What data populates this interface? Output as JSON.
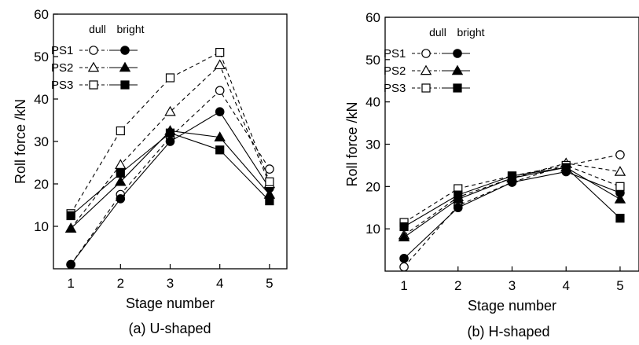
{
  "chart_data": [
    {
      "type": "line",
      "caption": "(a) U-shaped",
      "xlabel": "Stage number",
      "ylabel": "Roll force /kN",
      "xlim": [
        0.65,
        5.35
      ],
      "ylim": [
        0,
        60
      ],
      "x": [
        1,
        2,
        3,
        4,
        5
      ],
      "yticks": [
        10,
        20,
        30,
        40,
        50,
        60
      ],
      "grid": false,
      "legend_header": [
        "dull",
        "bright"
      ],
      "legend_placement": "top-left",
      "legend_rows": [
        {
          "label": "PS1",
          "marker": "circle"
        },
        {
          "label": "PS2",
          "marker": "triangle"
        },
        {
          "label": "PS3",
          "marker": "square"
        }
      ],
      "series": [
        {
          "group": "PS1",
          "finish": "dull",
          "marker": "circle",
          "filled": false,
          "dashed": true,
          "values": [
            1,
            17.5,
            31,
            42,
            23.5
          ]
        },
        {
          "group": "PS1",
          "finish": "bright",
          "marker": "circle",
          "filled": true,
          "dashed": false,
          "values": [
            1,
            16.5,
            30,
            37,
            19
          ]
        },
        {
          "group": "PS2",
          "finish": "dull",
          "marker": "triangle",
          "filled": false,
          "dashed": true,
          "values": [
            9.5,
            24.5,
            37,
            48,
            20
          ]
        },
        {
          "group": "PS2",
          "finish": "bright",
          "marker": "triangle",
          "filled": true,
          "dashed": false,
          "values": [
            9.5,
            20.5,
            32.5,
            31,
            17.5
          ]
        },
        {
          "group": "PS3",
          "finish": "dull",
          "marker": "square",
          "filled": false,
          "dashed": true,
          "values": [
            13,
            32.5,
            45,
            51,
            20.5
          ]
        },
        {
          "group": "PS3",
          "finish": "bright",
          "marker": "square",
          "filled": true,
          "dashed": false,
          "values": [
            12.5,
            22.5,
            32,
            28,
            16
          ]
        }
      ]
    },
    {
      "type": "line",
      "caption": "(b) H-shaped",
      "xlabel": "Stage number",
      "ylabel": "Roll force /kN",
      "xlim": [
        0.65,
        5.35
      ],
      "ylim": [
        0,
        60
      ],
      "x": [
        1,
        2,
        3,
        4,
        5
      ],
      "yticks": [
        10,
        20,
        30,
        40,
        50,
        60
      ],
      "grid": false,
      "legend_header": [
        "dull",
        "bright"
      ],
      "legend_placement": "top-left",
      "legend_rows": [
        {
          "label": "PS1",
          "marker": "circle"
        },
        {
          "label": "PS2",
          "marker": "triangle"
        },
        {
          "label": "PS3",
          "marker": "square"
        }
      ],
      "series": [
        {
          "group": "PS1",
          "finish": "dull",
          "marker": "circle",
          "filled": false,
          "dashed": true,
          "values": [
            1,
            15.5,
            21,
            25,
            27.5
          ]
        },
        {
          "group": "PS1",
          "finish": "bright",
          "marker": "circle",
          "filled": true,
          "dashed": false,
          "values": [
            3,
            15,
            21,
            23.5,
            18.5
          ]
        },
        {
          "group": "PS2",
          "finish": "dull",
          "marker": "triangle",
          "filled": false,
          "dashed": true,
          "values": [
            8.5,
            17.5,
            22,
            25.5,
            23.5
          ]
        },
        {
          "group": "PS2",
          "finish": "bright",
          "marker": "triangle",
          "filled": true,
          "dashed": false,
          "values": [
            8,
            17,
            22,
            24.5,
            17
          ]
        },
        {
          "group": "PS3",
          "finish": "dull",
          "marker": "square",
          "filled": false,
          "dashed": true,
          "values": [
            11.5,
            19.5,
            22.5,
            25,
            20
          ]
        },
        {
          "group": "PS3",
          "finish": "bright",
          "marker": "square",
          "filled": true,
          "dashed": false,
          "values": [
            10.5,
            18,
            22.5,
            24.5,
            12.5
          ]
        }
      ]
    }
  ]
}
